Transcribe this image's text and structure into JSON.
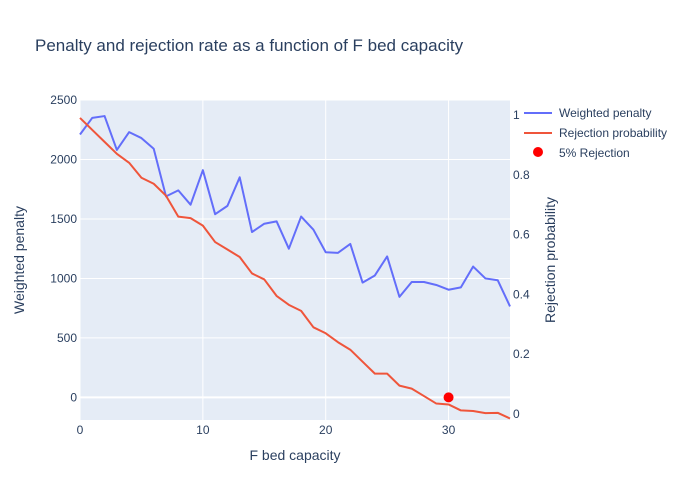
{
  "chart_data": {
    "type": "line",
    "title": "Penalty and rejection rate as a function of F bed capacity",
    "xlabel": "F bed capacity",
    "ylabel_left": "Weighted penalty",
    "ylabel_right": "Rejection probability",
    "xlim": [
      0,
      35
    ],
    "ylim_left": [
      -190,
      2500
    ],
    "ylim_right": [
      -0.02,
      1.05
    ],
    "x_ticks": [
      "0",
      "10",
      "20",
      "30"
    ],
    "y_left_ticks": [
      "0",
      "500",
      "1000",
      "1500",
      "2000",
      "2500"
    ],
    "y_right_ticks": [
      "0",
      "0.2",
      "0.4",
      "0.6",
      "0.8",
      "1"
    ],
    "grid": true,
    "legend_position": "top-right",
    "colors": {
      "penalty": "#636efa",
      "rejection": "#ef553b",
      "marker": "#ff0000",
      "plot_bg": "#e5ecf6",
      "grid": "#ffffff",
      "text": "#2a3f5f"
    },
    "series": [
      {
        "name": "Weighted penalty",
        "axis": "left",
        "x": [
          0,
          1,
          2,
          3,
          4,
          5,
          6,
          7,
          8,
          9,
          10,
          11,
          12,
          13,
          14,
          15,
          16,
          17,
          18,
          19,
          20,
          21,
          22,
          23,
          24,
          25,
          26,
          27,
          28,
          29,
          30,
          31,
          32,
          33,
          34,
          35
        ],
        "values": [
          2210,
          2350,
          2365,
          2080,
          2230,
          2180,
          2090,
          1690,
          1740,
          1620,
          1910,
          1540,
          1610,
          1850,
          1390,
          1460,
          1480,
          1250,
          1520,
          1410,
          1220,
          1215,
          1290,
          965,
          1025,
          1185,
          845,
          970,
          970,
          945,
          905,
          925,
          1100,
          1000,
          985,
          765
        ]
      },
      {
        "name": "Rejection probability",
        "axis": "right",
        "x": [
          0,
          1,
          2,
          3,
          4,
          5,
          6,
          7,
          8,
          9,
          10,
          11,
          12,
          13,
          14,
          15,
          16,
          17,
          18,
          19,
          20,
          21,
          22,
          23,
          24,
          25,
          26,
          27,
          28,
          29,
          30,
          31,
          32,
          33,
          34,
          35
        ],
        "values": [
          0.99,
          0.95,
          0.91,
          0.87,
          0.84,
          0.79,
          0.77,
          0.73,
          0.66,
          0.655,
          0.63,
          0.575,
          0.55,
          0.525,
          0.47,
          0.45,
          0.395,
          0.365,
          0.345,
          0.29,
          0.27,
          0.24,
          0.215,
          0.175,
          0.135,
          0.135,
          0.095,
          0.085,
          0.06,
          0.035,
          0.032,
          0.012,
          0.01,
          0.003,
          0.004,
          -0.015
        ]
      },
      {
        "name": "5% Rejection",
        "axis": "left",
        "mode": "markers",
        "x": [
          30
        ],
        "values": [
          0
        ]
      }
    ]
  }
}
